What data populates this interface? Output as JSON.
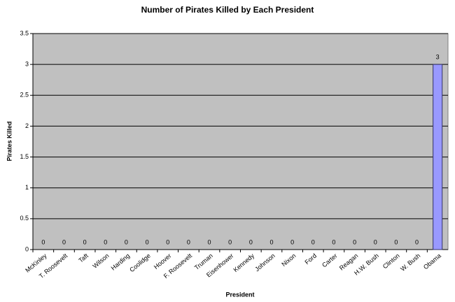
{
  "chart_data": {
    "type": "bar",
    "title": "Number of Pirates Killed by Each President",
    "x_label": "President",
    "y_label": "Pirates Killed",
    "categories": [
      "McKinley",
      "T. Roosevelt",
      "Taft",
      "Wilson",
      "Harding",
      "Coolidge",
      "Hoover",
      "F. Roosevelt",
      "Truman",
      "Eisenhower",
      "Kennedy",
      "Johnson",
      "Nixon",
      "Ford",
      "Carter",
      "Reagan",
      "H.W. Bush",
      "Clinton",
      "W. Bush",
      "Obama"
    ],
    "values": [
      0,
      0,
      0,
      0,
      0,
      0,
      0,
      0,
      0,
      0,
      0,
      0,
      0,
      0,
      0,
      0,
      0,
      0,
      0,
      3
    ],
    "color": "#9999ff",
    "ylim": [
      0,
      3.5
    ],
    "yticks": [
      0,
      0.5,
      1,
      1.5,
      2,
      2.5,
      3,
      3.5
    ],
    "grid": true
  }
}
